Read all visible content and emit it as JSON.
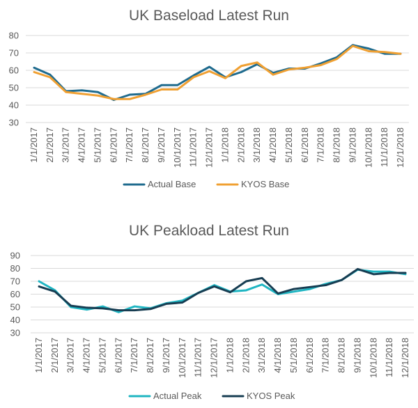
{
  "chart_data": [
    {
      "type": "line",
      "title": "UK Baseload Latest Run",
      "xlabel": "",
      "ylabel": "",
      "ylim": [
        30,
        80
      ],
      "yticks": [
        30,
        40,
        50,
        60,
        70,
        80
      ],
      "grid": true,
      "legend": "bottom",
      "categories": [
        "1/1/2017",
        "2/1/2017",
        "3/1/2017",
        "4/1/2017",
        "5/1/2017",
        "6/1/2017",
        "7/1/2017",
        "8/1/2017",
        "9/1/2017",
        "10/1/2017",
        "11/1/2017",
        "12/1/2017",
        "1/1/2018",
        "2/1/2018",
        "3/1/2018",
        "4/1/2018",
        "5/1/2018",
        "6/1/2018",
        "7/1/2018",
        "8/1/2018",
        "9/1/2018",
        "10/1/2018",
        "11/1/2018",
        "12/1/2018"
      ],
      "series": [
        {
          "name": "Actual Base",
          "color": "#1f6b8e",
          "values": [
            61.5,
            57.5,
            48,
            48.5,
            47.5,
            43,
            46,
            46.5,
            51.5,
            51.5,
            57,
            62,
            56,
            59,
            63.5,
            58.5,
            61,
            61,
            64,
            67.5,
            74.5,
            72.5,
            69.5,
            69.5
          ]
        },
        {
          "name": "KYOS Base",
          "color": "#f0a032",
          "values": [
            59,
            56,
            47.5,
            46.5,
            45.5,
            43.5,
            43.5,
            46,
            49,
            49,
            56,
            59.5,
            55.5,
            62.5,
            64.5,
            57.5,
            60.5,
            61.5,
            63,
            66.5,
            74,
            71,
            70.5,
            69.5
          ]
        }
      ]
    },
    {
      "type": "line",
      "title": "UK Peakload Latest Run",
      "xlabel": "",
      "ylabel": "",
      "ylim": [
        30,
        90
      ],
      "yticks": [
        30,
        40,
        50,
        60,
        70,
        80,
        90
      ],
      "grid": true,
      "legend": "bottom",
      "categories": [
        "1/1/2017",
        "2/1/2017",
        "3/1/2017",
        "4/1/2017",
        "5/1/2017",
        "6/1/2017",
        "7/1/2017",
        "8/1/2017",
        "9/1/2017",
        "10/1/2017",
        "11/1/2017",
        "12/1/2017",
        "1/1/2018",
        "2/1/2018",
        "3/1/2018",
        "4/1/2018",
        "5/1/2018",
        "6/1/2018",
        "7/1/2018",
        "8/1/2018",
        "9/1/2018",
        "10/1/2018",
        "11/1/2018",
        "12/1/2018"
      ],
      "series": [
        {
          "name": "Actual Peak",
          "color": "#1fb5c2",
          "values": [
            70,
            63,
            50,
            48,
            50.5,
            46,
            50.5,
            49,
            53,
            55,
            61,
            67,
            62,
            63,
            67.5,
            60,
            62,
            64,
            68,
            71,
            79,
            77.5,
            77.5,
            75.5
          ]
        },
        {
          "name": "KYOS Peak",
          "color": "#173d52",
          "values": [
            66,
            62,
            51,
            49.5,
            49,
            47.5,
            47.5,
            48.5,
            52.5,
            53.5,
            61,
            66,
            61.5,
            70,
            72.5,
            60.5,
            64,
            65.5,
            67,
            71,
            79.5,
            75.5,
            76.5,
            76.5
          ]
        }
      ]
    }
  ]
}
